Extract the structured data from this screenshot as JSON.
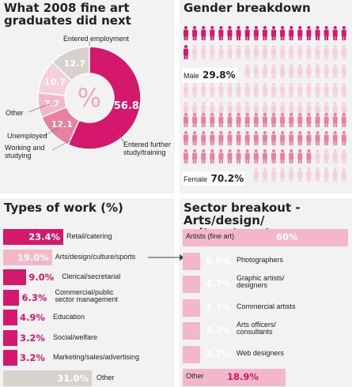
{
  "colors": {
    "magenta": "#d4196d",
    "pink": "#e7819f",
    "lightpink": "#f2b7c8",
    "paleprint": "#f5d0dc",
    "grey": "#d8d2cd",
    "panel": "#f2f2f2"
  },
  "outcomes": {
    "title": "What 2008 fine art graduates did next",
    "center_symbol": "%",
    "chart_data": {
      "type": "pie",
      "categories": [
        "Entered employment",
        "Entered further study/training",
        "Working and studying",
        "Unemployed",
        "Other"
      ],
      "values": [
        56.8,
        12.1,
        7.7,
        10.7,
        12.7
      ],
      "value_labels": [
        "56.8",
        "12.1",
        "7.7",
        "10.7",
        "12.7"
      ]
    }
  },
  "gender": {
    "title": "Gender breakdown",
    "male_label": "Male",
    "male_pct": "29.8%",
    "female_label": "Female",
    "female_pct": "70.2%",
    "chart_data": {
      "type": "pictogram",
      "categories": [
        "Male",
        "Female"
      ],
      "values": [
        29.8,
        70.2
      ]
    }
  },
  "work": {
    "title": "Types of work (%)",
    "chart_data": {
      "type": "bar",
      "orientation": "horizontal",
      "categories": [
        "Retail/catering",
        "Arts/design/culture/sports",
        "Clerical/secretarial",
        "Commercial/public sector management",
        "Education",
        "Social/welfare",
        "Marketing/sales/advertising",
        "Other"
      ],
      "values": [
        23.4,
        19.0,
        9.0,
        6.3,
        4.9,
        3.2,
        3.2,
        31.0
      ],
      "value_labels": [
        "23.4%",
        "19.0%",
        "9.0%",
        "6.3%",
        "4.9%",
        "3.2%",
        "3.2%",
        "31.0%"
      ]
    }
  },
  "sector": {
    "title": "Sector breakout - Arts/design/ culture/sports",
    "chart_data": {
      "type": "bar",
      "orientation": "horizontal",
      "categories": [
        "Artists (fine art)",
        "Photographers",
        "Graphic artists/ designers",
        "Commercial artists",
        "Arts officers/ consultants",
        "Web designers",
        "Other"
      ],
      "values": [
        60,
        6.8,
        4.7,
        3.7,
        3.2,
        2.7,
        18.9
      ],
      "value_labels": [
        "60%",
        "6.8%",
        "4.7%",
        "3.7%",
        "3.2%",
        "2.7%",
        "18.9%"
      ]
    }
  }
}
